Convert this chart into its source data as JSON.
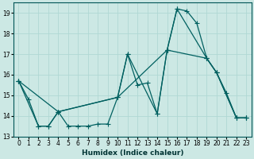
{
  "xlabel": "Humidex (Indice chaleur)",
  "bg_color": "#cce8e4",
  "grid_color": "#b0d8d4",
  "line_color": "#006060",
  "xlim": [
    -0.5,
    23.5
  ],
  "ylim": [
    13,
    19.5
  ],
  "yticks": [
    13,
    14,
    15,
    16,
    17,
    18,
    19
  ],
  "xticks": [
    0,
    1,
    2,
    3,
    4,
    5,
    6,
    7,
    8,
    9,
    10,
    11,
    12,
    13,
    14,
    15,
    16,
    17,
    18,
    19,
    20,
    21,
    22,
    23
  ],
  "line1_x": [
    0,
    1,
    2,
    3,
    4,
    5,
    6,
    7,
    8,
    9,
    10,
    11,
    12,
    13,
    14,
    15,
    16,
    17,
    18,
    19,
    20,
    21,
    22,
    23
  ],
  "line1_y": [
    15.7,
    14.8,
    13.5,
    13.5,
    14.2,
    13.5,
    13.5,
    13.5,
    13.6,
    13.6,
    14.9,
    17.0,
    15.5,
    15.6,
    14.1,
    17.2,
    19.2,
    19.1,
    18.5,
    16.8,
    16.1,
    15.1,
    13.9,
    13.9
  ],
  "line2_x": [
    0,
    2,
    3,
    4,
    10,
    11,
    14,
    15,
    16,
    19,
    20,
    22,
    23
  ],
  "line2_y": [
    15.7,
    13.5,
    13.5,
    14.2,
    14.9,
    17.0,
    14.1,
    17.2,
    19.2,
    16.8,
    16.1,
    13.9,
    13.9
  ],
  "line3_x": [
    0,
    4,
    10,
    15,
    19,
    20,
    22,
    23
  ],
  "line3_y": [
    15.7,
    14.2,
    14.9,
    17.2,
    16.8,
    16.1,
    13.9,
    13.9
  ]
}
